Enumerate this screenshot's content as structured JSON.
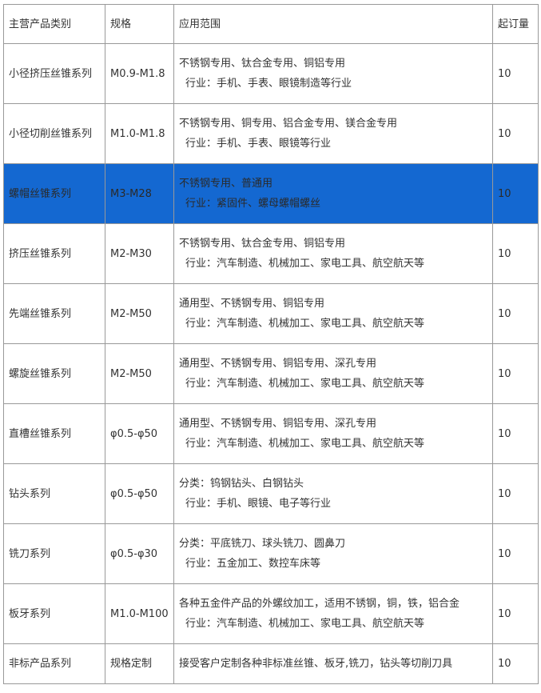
{
  "headers": [
    "主营产品类别",
    "规格",
    "应用范围",
    "起订量"
  ],
  "highlight_color": "#1468d1",
  "rows": [
    {
      "category": "小径挤压丝锥系列",
      "spec": "M0.9-M1.8",
      "line1": "不锈钢专用、钛合金专用、铜铝专用",
      "line2": "行业：手机、手表、眼镜制造等行业",
      "moq": "10"
    },
    {
      "category": "小径切削丝锥系列",
      "spec": "M1.0-M1.8",
      "line1": "不锈钢专用、铜专用、铝合金专用、镁合金专用",
      "line2": "行业：手机、手表、眼镜等行业",
      "moq": "10"
    },
    {
      "category": "螺帽丝锥系列",
      "spec": "M3-M28",
      "line1": "不锈钢专用、普通用",
      "line2": "行业：紧固件、螺母螺帽螺丝",
      "moq": "10",
      "selected": true
    },
    {
      "category": "挤压丝锥系列",
      "spec": "M2-M30",
      "line1": "不锈钢专用、钛合金专用、铜铝专用",
      "line2": "行业：汽车制造、机械加工、家电工具、航空航天等",
      "moq": "10"
    },
    {
      "category": "先端丝锥系列",
      "spec": "M2-M50",
      "line1": "通用型、不锈钢专用、铜铝专用",
      "line2": "行业：汽车制造、机械加工、家电工具、航空航天等",
      "moq": "10"
    },
    {
      "category": "螺旋丝锥系列",
      "spec": "M2-M50",
      "line1": "通用型、不锈钢专用、铜铝专用、深孔专用",
      "line2": "行业：汽车制造、机械加工、家电工具、航空航天等",
      "moq": "10"
    },
    {
      "category": "直槽丝锥系列",
      "spec": "φ0.5-φ50",
      "line1": "通用型、不锈钢专用、铜铝专用、深孔专用",
      "line2": "行业：汽车制造、机械加工、家电工具、航空航天等",
      "moq": "10"
    },
    {
      "category": "钻头系列",
      "spec": "φ0.5-φ50",
      "line1": "分类：钨钢钻头、白钢钻头",
      "line2": "行业：手机、眼镜、电子等行业",
      "moq": "10"
    },
    {
      "category": "铣刀系列",
      "spec": "φ0.5-φ30",
      "line1": "分类：平底铣刀、球头铣刀、圆鼻刀",
      "line2": "行业：五金加工、数控车床等",
      "moq": "10"
    },
    {
      "category": "板牙系列",
      "spec": "M1.0-M100",
      "line1": "各种五金件产品的外螺纹加工，适用不锈钢，铜，铁，铝合金",
      "line2": "行业：汽车制造、机械加工、家电工具、航空航天等",
      "moq": "10"
    },
    {
      "category": "非标产品系列",
      "spec": "规格定制",
      "line1": "接受客户定制各种非标准丝锥、板牙,铣刀，钻头等切削刀具",
      "moq": "10"
    }
  ]
}
